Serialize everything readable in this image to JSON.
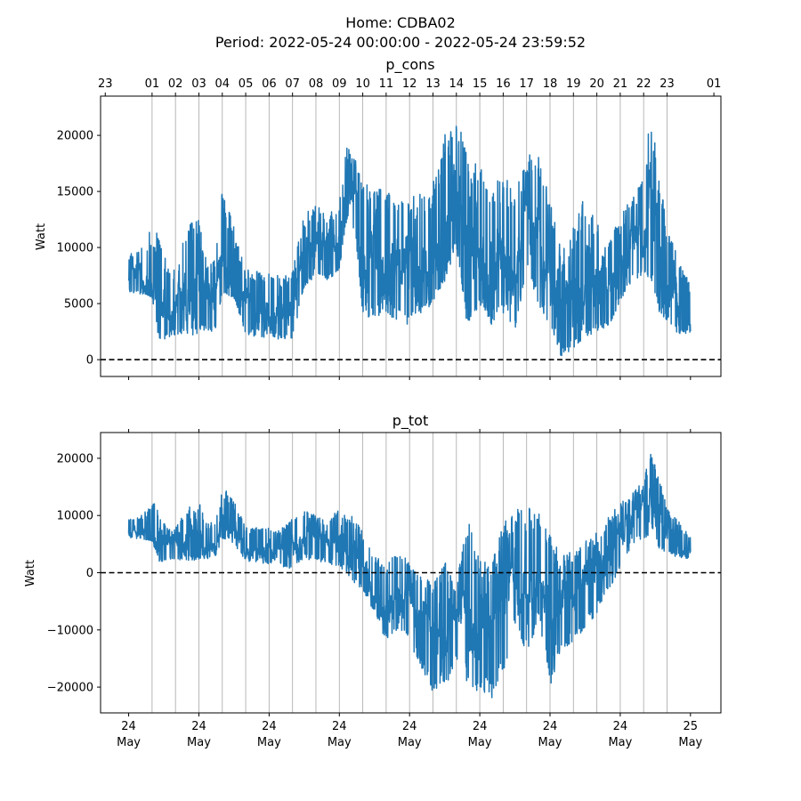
{
  "header": {
    "title_line1": "Home: CDBA02",
    "title_line2": "Period: 2022-05-24 00:00:00 - 2022-05-24 23:59:52"
  },
  "colors": {
    "series": "#1f77b4",
    "hour_grid": "#b0b0b0",
    "zero_line": "#000000",
    "axes": "#000000"
  },
  "chart_data": [
    {
      "type": "line",
      "title": "p_cons",
      "ylabel": "Watt",
      "ylim": [
        -1500,
        23500
      ],
      "yticks": [
        0,
        5000,
        10000,
        15000,
        20000
      ],
      "ytick_labels": [
        "0",
        "5000",
        "10000",
        "15000",
        "20000"
      ],
      "xlim_hours": [
        -1.2,
        25.3
      ],
      "top_hour_ticks": [
        -1,
        1,
        2,
        3,
        4,
        5,
        6,
        7,
        8,
        9,
        10,
        11,
        12,
        13,
        14,
        15,
        16,
        17,
        18,
        19,
        20,
        21,
        22,
        23,
        25
      ],
      "top_tick_labels": [
        "23",
        "01",
        "02",
        "03",
        "04",
        "05",
        "06",
        "07",
        "08",
        "09",
        "10",
        "11",
        "12",
        "13",
        "14",
        "15",
        "16",
        "17",
        "18",
        "19",
        "20",
        "21",
        "22",
        "23",
        "01"
      ],
      "hour_gridlines": [
        1,
        2,
        3,
        4,
        5,
        6,
        7,
        8,
        9,
        10,
        11,
        12,
        13,
        14,
        15,
        16,
        17,
        18,
        19,
        20,
        21,
        22,
        23
      ],
      "zero_line": 0,
      "grid": "vertical hourly lines",
      "series": [
        {
          "x_hours": [
            0,
            0.5,
            1,
            1.3,
            1.7,
            2,
            2.5,
            3,
            3.3,
            3.7,
            4,
            4.5,
            5,
            5.5,
            6,
            6.5,
            7,
            7.5,
            8,
            8.5,
            9,
            9.3,
            9.7,
            10,
            10.5,
            11,
            11.5,
            12,
            12.5,
            13,
            13.5,
            14,
            14.5,
            15,
            15.5,
            16,
            16.5,
            17,
            17.5,
            18,
            18.5,
            19,
            19.5,
            20,
            20.5,
            21,
            21.5,
            22,
            22.3,
            22.7,
            23,
            23.5,
            24
          ],
          "lo": [
            6000,
            5800,
            5700,
            1500,
            2000,
            2000,
            2100,
            2200,
            2400,
            2600,
            6000,
            5500,
            2200,
            2000,
            2000,
            1700,
            1800,
            6500,
            7500,
            7000,
            8000,
            12000,
            11000,
            3500,
            3800,
            4000,
            3500,
            3000,
            4000,
            5000,
            7000,
            10000,
            2000,
            5000,
            3000,
            4000,
            2500,
            8000,
            5000,
            3000,
            100,
            1000,
            2000,
            2500,
            3000,
            5000,
            7000,
            7500,
            7000,
            4000,
            3500,
            2200,
            2400
          ],
          "hi": [
            9500,
            9800,
            12000,
            11000,
            8000,
            8200,
            12000,
            12500,
            9000,
            9000,
            15200,
            11800,
            8000,
            8000,
            8000,
            7500,
            8000,
            13000,
            13800,
            13500,
            14000,
            19300,
            18500,
            16500,
            15000,
            16000,
            14000,
            14500,
            15000,
            16000,
            20000,
            22500,
            18000,
            17500,
            16000,
            16500,
            15000,
            18800,
            18500,
            14500,
            9500,
            12000,
            15000,
            12500,
            11000,
            12500,
            15000,
            16000,
            22500,
            16000,
            12000,
            9000,
            6600
          ],
          "mean": [
            7200,
            7300,
            5000,
            4500,
            4500,
            4500,
            5000,
            5500,
            4500,
            4500,
            6500,
            6000,
            4000,
            4500,
            4000,
            3500,
            3500,
            8000,
            8500,
            8500,
            9000,
            14500,
            12500,
            8000,
            7500,
            8000,
            7000,
            6500,
            7000,
            8000,
            10000,
            14000,
            9000,
            9000,
            8000,
            8500,
            7500,
            12000,
            9000,
            7500,
            3500,
            5000,
            6000,
            6000,
            6000,
            8000,
            9500,
            11000,
            13000,
            7000,
            6000,
            4500,
            3000
          ]
        }
      ]
    },
    {
      "type": "line",
      "title": "p_tot",
      "ylabel": "Watt",
      "ylim": [
        -24500,
        24500
      ],
      "yticks": [
        -20000,
        -10000,
        0,
        10000,
        20000
      ],
      "ytick_labels": [
        "−20000",
        "−10000",
        "0",
        "10000",
        "20000"
      ],
      "xlim_hours": [
        -1.2,
        25.3
      ],
      "bottom_day_ticks": [
        0,
        3,
        6,
        9,
        12,
        15,
        18,
        21,
        24
      ],
      "bottom_tick_day_labels": [
        "24",
        "24",
        "24",
        "24",
        "24",
        "24",
        "24",
        "24",
        "25"
      ],
      "bottom_tick_month_labels": [
        "May",
        "May",
        "May",
        "May",
        "May",
        "May",
        "May",
        "May",
        "May"
      ],
      "hour_gridlines": [
        1,
        2,
        3,
        4,
        5,
        6,
        7,
        8,
        9,
        10,
        11,
        12,
        13,
        14,
        15,
        16,
        17,
        18,
        19,
        20,
        21,
        22,
        23
      ],
      "zero_line": 0,
      "grid": "vertical hourly lines",
      "series": [
        {
          "x_hours": [
            0,
            0.5,
            1,
            1.3,
            1.7,
            2,
            2.5,
            3,
            3.3,
            3.7,
            4,
            4.5,
            5,
            5.5,
            6,
            6.5,
            7,
            7.5,
            8,
            8.5,
            9,
            9.3,
            9.7,
            10,
            10.5,
            11,
            11.5,
            12,
            12.5,
            13,
            13.5,
            14,
            14.5,
            15,
            15.5,
            16,
            16.5,
            17,
            17.5,
            18,
            18.5,
            19,
            19.5,
            20,
            20.5,
            21,
            21.5,
            22,
            22.3,
            22.7,
            23,
            23.5,
            24
          ],
          "lo": [
            6000,
            5800,
            5700,
            1800,
            2000,
            2000,
            2100,
            2200,
            2400,
            2600,
            6000,
            5000,
            2000,
            1800,
            1500,
            1200,
            500,
            2500,
            2000,
            1500,
            1000,
            0,
            -2000,
            -3000,
            -7000,
            -12000,
            -10000,
            -12000,
            -17000,
            -21000,
            -20000,
            -16000,
            -20000,
            -21000,
            -22000,
            -18000,
            -10000,
            -15000,
            -8000,
            -20000,
            -14000,
            -12000,
            -10000,
            -7000,
            -3000,
            500,
            5000,
            6000,
            6500,
            4000,
            3500,
            2500,
            2500
          ],
          "hi": [
            9500,
            9800,
            12500,
            11500,
            8000,
            8500,
            12000,
            12500,
            9000,
            9000,
            15200,
            12500,
            8000,
            8000,
            8000,
            7500,
            10000,
            11000,
            10000,
            9500,
            11000,
            10500,
            10000,
            7000,
            3500,
            1500,
            4000,
            2000,
            0,
            -2000,
            3000,
            -2000,
            10000,
            2000,
            2000,
            8500,
            11000,
            12000,
            10500,
            7000,
            3000,
            4000,
            6000,
            7000,
            10000,
            12000,
            14000,
            16000,
            22500,
            16000,
            12000,
            9000,
            6500
          ],
          "mean": [
            7200,
            7300,
            5000,
            4500,
            4500,
            4500,
            5000,
            5500,
            4500,
            4500,
            6500,
            6000,
            4000,
            4000,
            3500,
            3000,
            3000,
            6000,
            5500,
            5000,
            5000,
            4000,
            2000,
            -1000,
            -4000,
            -6000,
            -5000,
            -7000,
            -9000,
            -11000,
            -9000,
            -10000,
            -6000,
            -10000,
            -11000,
            -6000,
            -2000,
            -4000,
            -1000,
            -9000,
            -7000,
            -5000,
            -3000,
            -1000,
            3000,
            6000,
            8500,
            10000,
            13000,
            7000,
            6000,
            4500,
            3000
          ]
        }
      ]
    }
  ]
}
